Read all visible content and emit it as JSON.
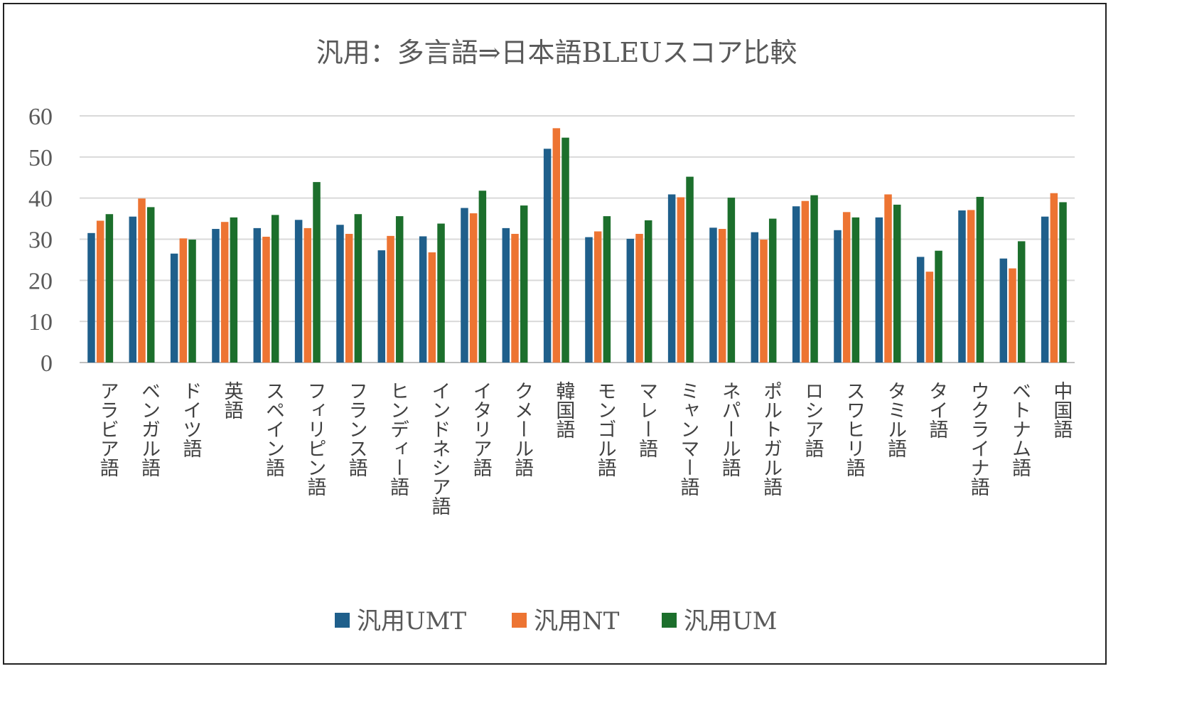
{
  "chart_data": {
    "type": "bar",
    "title": "汎用：多言語⇒日本語BLEUスコア比較",
    "xlabel": "",
    "ylabel": "",
    "ylim": [
      0,
      60
    ],
    "yticks": [
      "0",
      "10",
      "20",
      "30",
      "40",
      "50",
      "60"
    ],
    "grid": true,
    "legend_position": "bottom",
    "categories": [
      "アラビア語",
      "ベンガル語",
      "ドイツ語",
      "英語",
      "スペイン語",
      "フィリピン語",
      "フランス語",
      "ヒンディー語",
      "インドネシア語",
      "イタリア語",
      "クメール語",
      "韓国語",
      "モンゴル語",
      "マレー語",
      "ミャンマー語",
      "ネパール語",
      "ポルトガル語",
      "ロシア語",
      "スワヒリ語",
      "タミル語",
      "タイ語",
      "ウクライナ語",
      "ベトナム語",
      "中国語"
    ],
    "series": [
      {
        "name": "汎用UMT",
        "color": "#1f5f8b",
        "values": [
          31.5,
          35.5,
          26.5,
          32.5,
          32.7,
          34.7,
          33.5,
          27.3,
          30.7,
          37.6,
          32.7,
          52.0,
          30.5,
          30.1,
          40.9,
          32.8,
          31.7,
          38.0,
          32.2,
          35.3,
          25.7,
          37.0,
          25.3,
          35.5
        ]
      },
      {
        "name": "汎用NT",
        "color": "#ed7432",
        "values": [
          34.5,
          39.9,
          30.2,
          34.2,
          30.6,
          32.7,
          31.3,
          30.8,
          26.8,
          36.3,
          31.3,
          57.0,
          31.9,
          31.3,
          40.2,
          32.5,
          29.9,
          39.3,
          36.6,
          40.9,
          22.1,
          37.1,
          22.9,
          41.2
        ]
      },
      {
        "name": "汎用UM",
        "color": "#1c6f2c",
        "values": [
          36.1,
          37.8,
          29.9,
          35.3,
          35.9,
          43.9,
          36.1,
          35.6,
          33.8,
          41.8,
          38.2,
          54.7,
          35.6,
          34.6,
          45.2,
          40.1,
          35.0,
          40.7,
          35.3,
          38.4,
          27.2,
          40.3,
          29.5,
          39.0
        ]
      }
    ]
  }
}
